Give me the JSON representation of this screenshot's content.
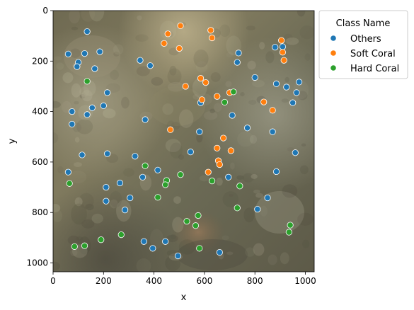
{
  "chart_data": {
    "type": "scatter",
    "title": "",
    "xlabel": "x",
    "ylabel": "y",
    "xlim": [
      0,
      1035
    ],
    "ylim": [
      1035,
      0
    ],
    "xticks": [
      0,
      200,
      400,
      600,
      800,
      1000
    ],
    "yticks": [
      0,
      200,
      400,
      600,
      800,
      1000
    ],
    "grid": false,
    "background": "underwater coral reef photograph",
    "legend": {
      "title": "Class Name",
      "placement": "outside-top-right"
    },
    "series": [
      {
        "name": "Others",
        "color": "#1f77b4",
        "points": [
          [
            135,
            83
          ],
          [
            60,
            172
          ],
          [
            125,
            170
          ],
          [
            185,
            163
          ],
          [
            100,
            205
          ],
          [
            95,
            222
          ],
          [
            165,
            230
          ],
          [
            345,
            197
          ],
          [
            385,
            218
          ],
          [
            215,
            325
          ],
          [
            200,
            377
          ],
          [
            155,
            385
          ],
          [
            135,
            412
          ],
          [
            75,
            400
          ],
          [
            75,
            450
          ],
          [
            365,
            432
          ],
          [
            585,
            365
          ],
          [
            710,
            415
          ],
          [
            580,
            480
          ],
          [
            770,
            465
          ],
          [
            870,
            480
          ],
          [
            885,
            290
          ],
          [
            925,
            303
          ],
          [
            975,
            283
          ],
          [
            965,
            325
          ],
          [
            950,
            365
          ],
          [
            880,
            145
          ],
          [
            910,
            143
          ],
          [
            735,
            168
          ],
          [
            730,
            205
          ],
          [
            800,
            265
          ],
          [
            115,
            572
          ],
          [
            215,
            567
          ],
          [
            325,
            577
          ],
          [
            545,
            560
          ],
          [
            960,
            563
          ],
          [
            60,
            640
          ],
          [
            210,
            700
          ],
          [
            265,
            683
          ],
          [
            355,
            660
          ],
          [
            415,
            632
          ],
          [
            695,
            660
          ],
          [
            885,
            638
          ],
          [
            210,
            755
          ],
          [
            305,
            742
          ],
          [
            285,
            790
          ],
          [
            850,
            742
          ],
          [
            810,
            787
          ],
          [
            360,
            915
          ],
          [
            445,
            915
          ],
          [
            395,
            942
          ],
          [
            495,
            972
          ],
          [
            660,
            958
          ]
        ]
      },
      {
        "name": "Soft Coral",
        "color": "#ff7f0e",
        "points": [
          [
            505,
            60
          ],
          [
            455,
            92
          ],
          [
            440,
            130
          ],
          [
            500,
            150
          ],
          [
            625,
            78
          ],
          [
            630,
            108
          ],
          [
            905,
            118
          ],
          [
            910,
            165
          ],
          [
            915,
            197
          ],
          [
            525,
            300
          ],
          [
            585,
            268
          ],
          [
            605,
            285
          ],
          [
            590,
            353
          ],
          [
            650,
            340
          ],
          [
            700,
            325
          ],
          [
            835,
            362
          ],
          [
            870,
            395
          ],
          [
            465,
            472
          ],
          [
            675,
            505
          ],
          [
            650,
            545
          ],
          [
            705,
            555
          ],
          [
            655,
            595
          ],
          [
            660,
            610
          ],
          [
            615,
            640
          ]
        ]
      },
      {
        "name": "Hard Coral",
        "color": "#2ca02c",
        "points": [
          [
            135,
            280
          ],
          [
            715,
            322
          ],
          [
            680,
            363
          ],
          [
            365,
            615
          ],
          [
            505,
            650
          ],
          [
            450,
            673
          ],
          [
            445,
            690
          ],
          [
            630,
            675
          ],
          [
            740,
            695
          ],
          [
            65,
            685
          ],
          [
            415,
            740
          ],
          [
            730,
            782
          ],
          [
            575,
            812
          ],
          [
            530,
            835
          ],
          [
            565,
            852
          ],
          [
            940,
            850
          ],
          [
            935,
            878
          ],
          [
            270,
            888
          ],
          [
            190,
            908
          ],
          [
            85,
            935
          ],
          [
            125,
            932
          ],
          [
            580,
            942
          ]
        ]
      }
    ]
  }
}
